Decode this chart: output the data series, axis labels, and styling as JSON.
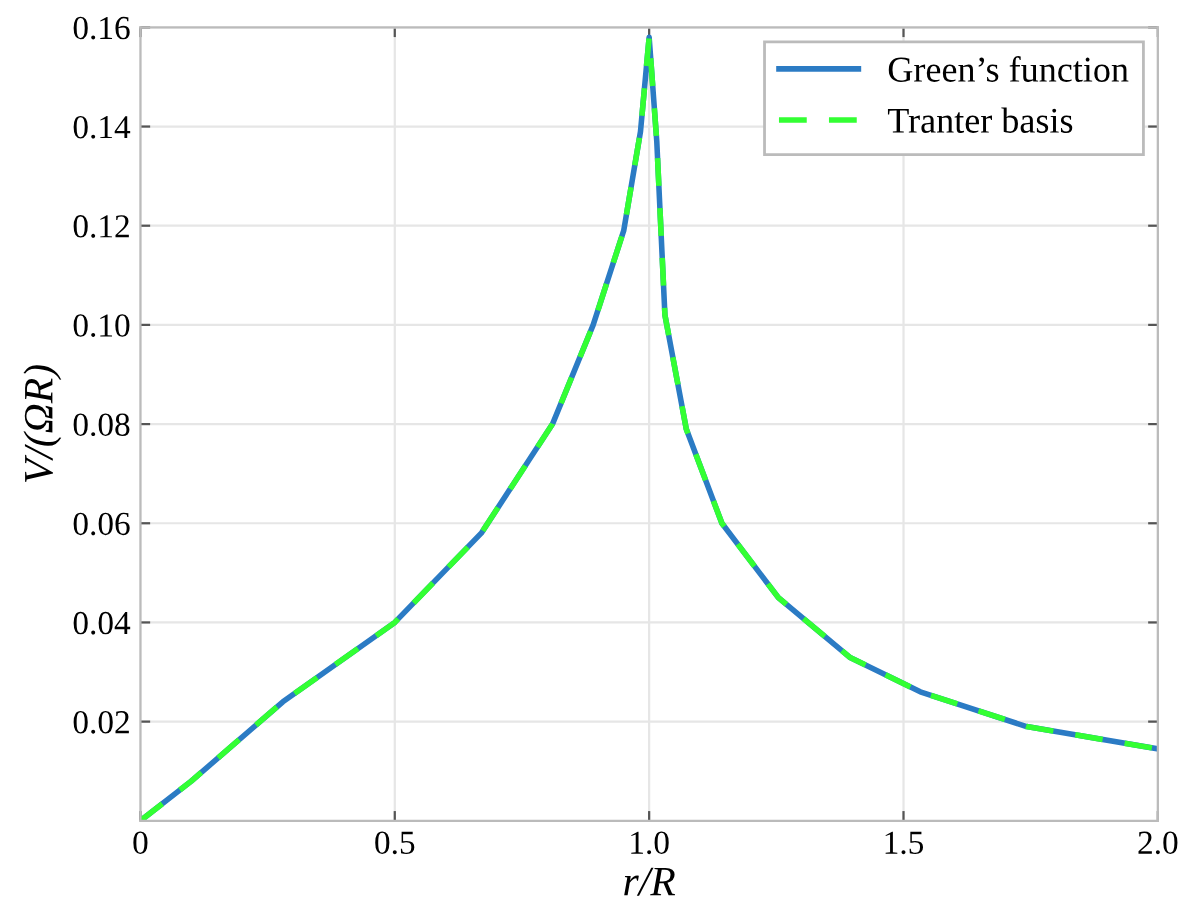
{
  "chart_data": {
    "type": "line",
    "xlabel": "r/R",
    "ylabel": "V/(ΩR)",
    "xlim": [
      0,
      2
    ],
    "ylim": [
      0,
      0.16
    ],
    "xticks": [
      0,
      0.5,
      {
        "value": 1,
        "label": "1.0"
      },
      1.5,
      {
        "value": 2,
        "label": "2.0"
      }
    ],
    "yticks": [
      0.02,
      0.04,
      0.06,
      0.08,
      {
        "value": 0.1,
        "label": "0.10"
      },
      0.12,
      0.14,
      0.16
    ],
    "grid": true,
    "legend": "top right",
    "series": [
      {
        "name": "Green’s function",
        "color": "#2b7bc4",
        "line_style": "solid",
        "x": [
          0,
          0.1,
          0.28,
          0.5,
          0.67,
          0.81,
          0.89,
          0.95,
          0.983,
          1.0,
          1.015,
          1.031,
          1.073,
          1.143,
          1.254,
          1.394,
          1.533,
          1.742,
          2.0
        ],
        "values": [
          0,
          0.008,
          0.024,
          0.04,
          0.058,
          0.08,
          0.1,
          0.119,
          0.139,
          0.158,
          0.137,
          0.102,
          0.079,
          0.06,
          0.045,
          0.033,
          0.026,
          0.019,
          0.0145
        ]
      },
      {
        "name": "Tranter basis",
        "color": "#33ff33",
        "line_style": "dashed",
        "x": [
          0,
          0.1,
          0.28,
          0.5,
          0.67,
          0.81,
          0.89,
          0.95,
          0.983,
          1.0,
          1.015,
          1.031,
          1.073,
          1.143,
          1.254,
          1.394,
          1.533,
          1.742,
          2.0
        ],
        "values": [
          0,
          0.008,
          0.024,
          0.04,
          0.058,
          0.08,
          0.1,
          0.119,
          0.139,
          0.158,
          0.137,
          0.102,
          0.079,
          0.06,
          0.045,
          0.033,
          0.026,
          0.019,
          0.0145
        ]
      }
    ]
  }
}
